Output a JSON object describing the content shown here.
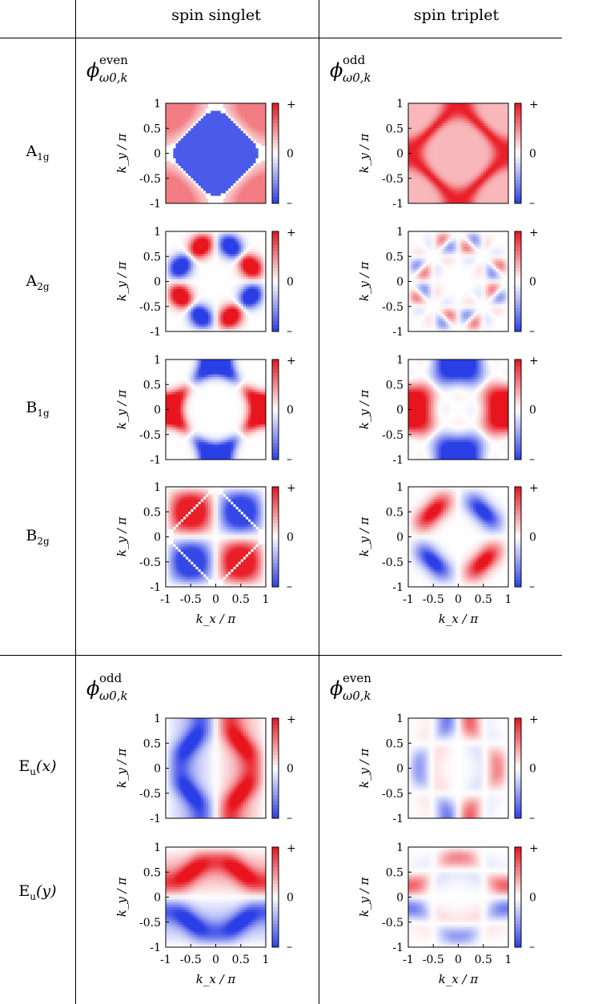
{
  "columns": {
    "singlet": "spin singlet",
    "triplet": "spin triplet"
  },
  "functions": {
    "top_singlet": {
      "sup": "even",
      "sub": "ω0,k"
    },
    "top_triplet": {
      "sup": "odd",
      "sub": "ω0,k"
    },
    "bottom_singlet": {
      "sup": "odd",
      "sub": "ω0,k"
    },
    "bottom_triplet": {
      "sup": "even",
      "sub": "ω0,k"
    }
  },
  "rows": [
    {
      "id": "A1g",
      "main": "A",
      "sub": "1g",
      "suffix": ""
    },
    {
      "id": "A2g",
      "main": "A",
      "sub": "2g",
      "suffix": ""
    },
    {
      "id": "B1g",
      "main": "B",
      "sub": "1g",
      "suffix": ""
    },
    {
      "id": "B2g",
      "main": "B",
      "sub": "2g",
      "suffix": ""
    },
    {
      "id": "Eux",
      "main": "E",
      "sub": "u",
      "suffix": "(x)"
    },
    {
      "id": "Euy",
      "main": "E",
      "sub": "u",
      "suffix": "(y)"
    }
  ],
  "axes": {
    "ylabel": "k_y / π",
    "xlabel": "k_x / π",
    "yticks": [
      "1",
      "0.5",
      "0",
      "-0.5",
      "-1"
    ],
    "xticks": [
      "-1",
      "-0.5",
      "0",
      "0.5",
      "1"
    ],
    "colorbar": {
      "plus": "+",
      "zero": "0",
      "minus": "–"
    }
  },
  "colors": {
    "positive": "#e8141e",
    "negative": "#2b3fe6",
    "zero": "#ffffff"
  }
}
